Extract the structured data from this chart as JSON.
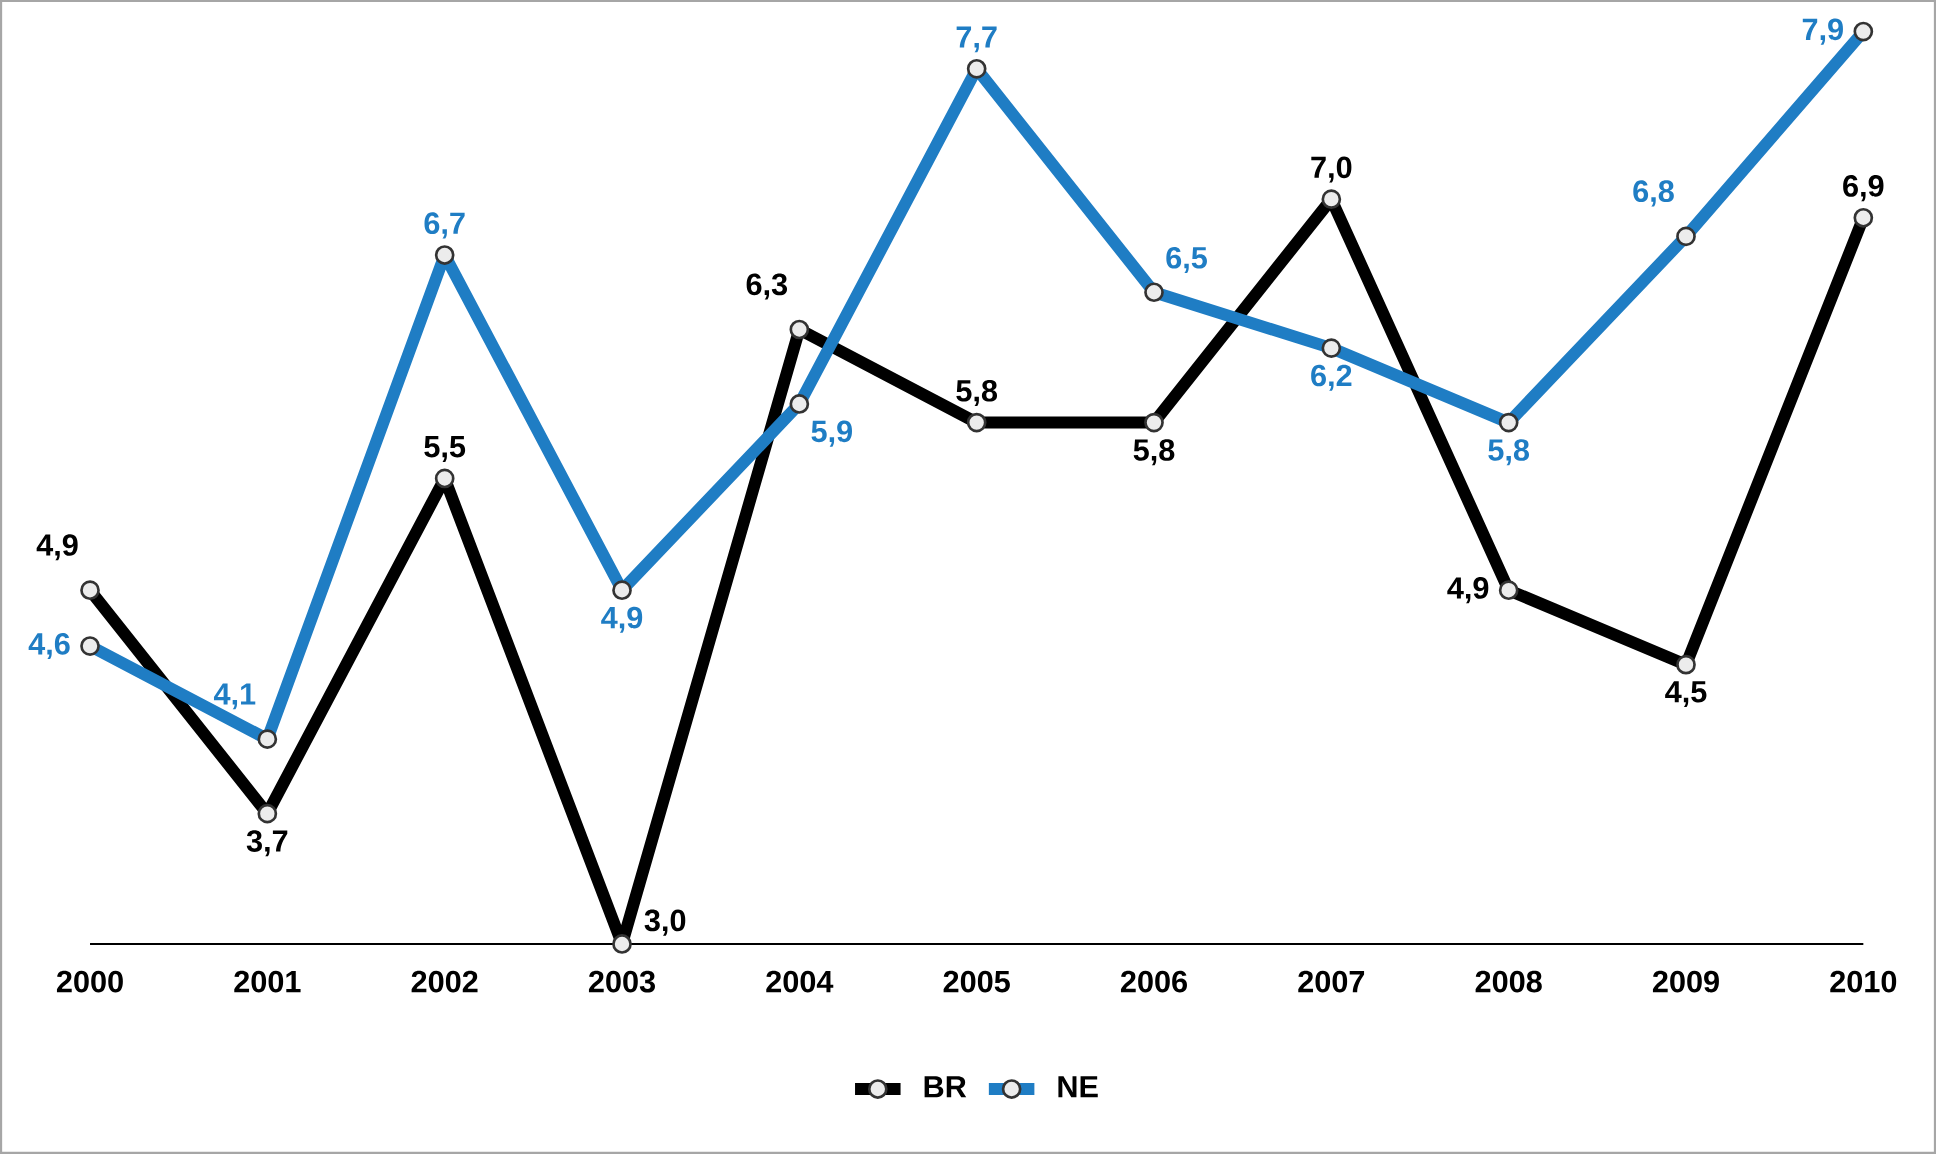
{
  "chart_data": {
    "type": "line",
    "categories": [
      "2000",
      "2001",
      "2002",
      "2003",
      "2004",
      "2005",
      "2006",
      "2007",
      "2008",
      "2009",
      "2010"
    ],
    "series": [
      {
        "name": "BR",
        "color": "#000000",
        "values": [
          4.9,
          3.7,
          5.5,
          3.0,
          6.3,
          5.8,
          5.8,
          7.0,
          4.9,
          4.5,
          6.9
        ],
        "value_labels": [
          "4,9",
          "3,7",
          "5,5",
          "3,0",
          "6,3",
          "5,8",
          "5,8",
          "7,0",
          "4,9",
          "4,5",
          "6,9"
        ]
      },
      {
        "name": "NE",
        "color": "#1f7dc4",
        "values": [
          4.6,
          4.1,
          6.7,
          4.9,
          5.9,
          7.7,
          6.5,
          6.2,
          5.8,
          6.8,
          7.9
        ],
        "value_labels": [
          "4,6",
          "4,1",
          "6,7",
          "4,9",
          "5,9",
          "7,7",
          "6,5",
          "6,2",
          "5,8",
          "6,8",
          "7,9"
        ]
      }
    ],
    "marker": "circle",
    "line_style": "solid",
    "legend": "bottom",
    "grid": false
  }
}
